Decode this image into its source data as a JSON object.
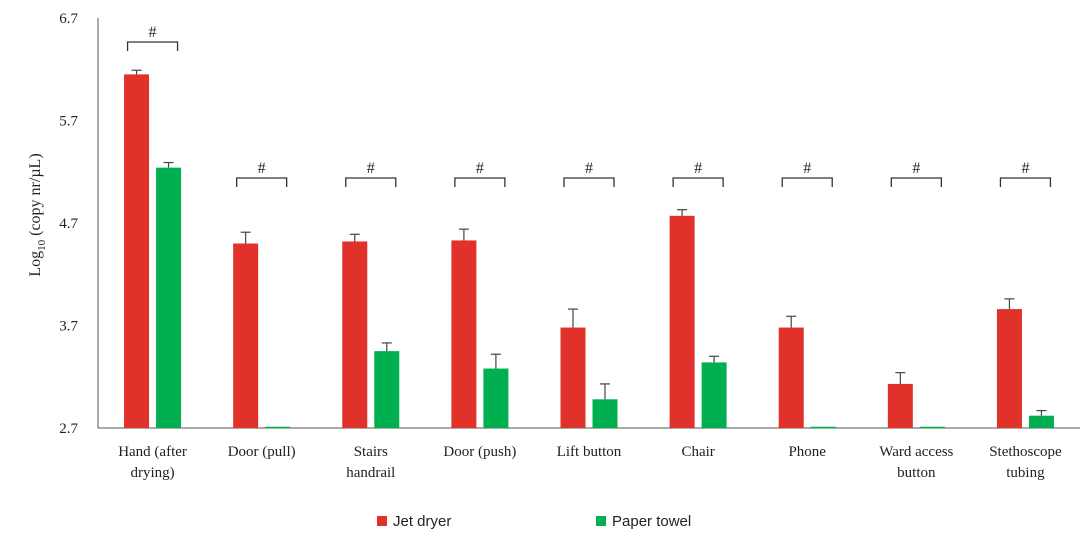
{
  "chart_data": {
    "type": "bar",
    "ylabel_main": "Log",
    "ylabel_sub": "10",
    "ylabel_rest": " (copy nr/µL)",
    "ylim": [
      2.7,
      6.7
    ],
    "yticks": [
      "6.7",
      "5.7",
      "4.7",
      "3.7",
      "2.7"
    ],
    "categories": [
      [
        "Hand (after",
        "drying)"
      ],
      [
        "Door (pull)"
      ],
      [
        "Stairs",
        "handrail"
      ],
      [
        "Door (push)"
      ],
      [
        "Lift button"
      ],
      [
        "Chair"
      ],
      [
        "Phone"
      ],
      [
        "Ward access",
        "button"
      ],
      [
        "Stethoscope",
        "tubing"
      ]
    ],
    "series": [
      {
        "name": "Jet dryer",
        "color": "#e0312a",
        "values": [
          6.15,
          4.5,
          4.52,
          4.53,
          3.68,
          4.77,
          3.68,
          3.13,
          3.86
        ],
        "errors": [
          0.04,
          0.11,
          0.07,
          0.11,
          0.18,
          0.06,
          0.11,
          0.11,
          0.1
        ]
      },
      {
        "name": "Paper towel",
        "color": "#00b050",
        "values": [
          5.24,
          2.7,
          3.45,
          3.28,
          2.98,
          3.34,
          2.7,
          2.7,
          2.82
        ],
        "errors": [
          0.05,
          0.0,
          0.08,
          0.14,
          0.15,
          0.06,
          0.0,
          0.0,
          0.05
        ]
      }
    ],
    "significance_marker": "#",
    "significance_categories": [
      0,
      1,
      2,
      3,
      4,
      5,
      6,
      7,
      8
    ],
    "grid": false,
    "legend_position": "bottom"
  }
}
